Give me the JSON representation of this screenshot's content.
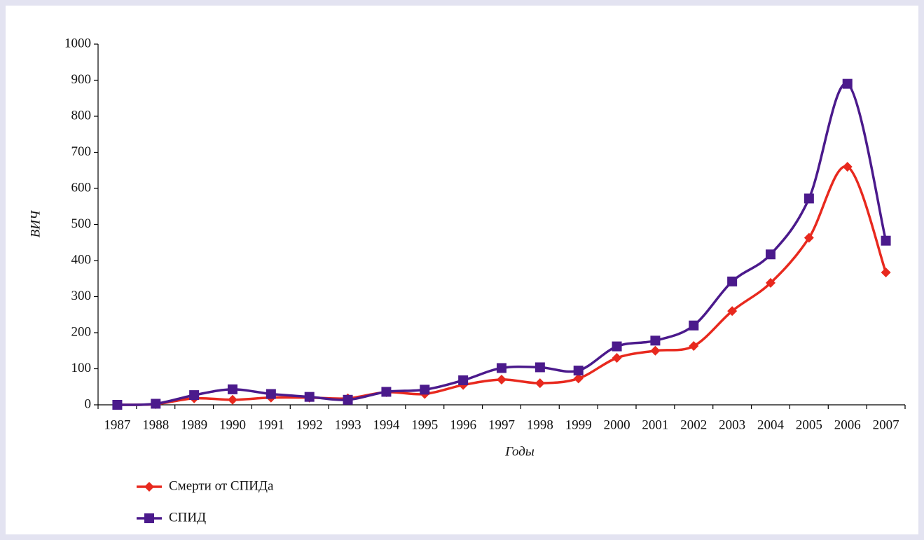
{
  "chart_data": {
    "type": "line",
    "x_label": "Годы",
    "y_label": "ВИЧ",
    "categories": [
      "1987",
      "1988",
      "1989",
      "1990",
      "1991",
      "1992",
      "1993",
      "1994",
      "1995",
      "1996",
      "1997",
      "1998",
      "1999",
      "2000",
      "2001",
      "2002",
      "2003",
      "2004",
      "2005",
      "2006",
      "2007"
    ],
    "series": [
      {
        "name": "Смерти от СПИДа",
        "color": "#e8291e",
        "marker": "diamond",
        "values": [
          0,
          2,
          18,
          14,
          20,
          20,
          18,
          35,
          30,
          55,
          70,
          60,
          73,
          130,
          150,
          163,
          260,
          338,
          463,
          660,
          367
        ]
      },
      {
        "name": "СПИД",
        "color": "#4b1a8c",
        "marker": "square",
        "values": [
          0,
          3,
          27,
          43,
          30,
          22,
          14,
          36,
          42,
          68,
          102,
          104,
          95,
          162,
          178,
          220,
          342,
          417,
          572,
          890,
          455
        ]
      }
    ],
    "ylim": [
      0,
      1000
    ],
    "yticks": [
      0,
      100,
      200,
      300,
      400,
      500,
      600,
      700,
      800,
      900,
      1000
    ],
    "smooth": true,
    "grid": false,
    "legend": "bottom-left"
  }
}
